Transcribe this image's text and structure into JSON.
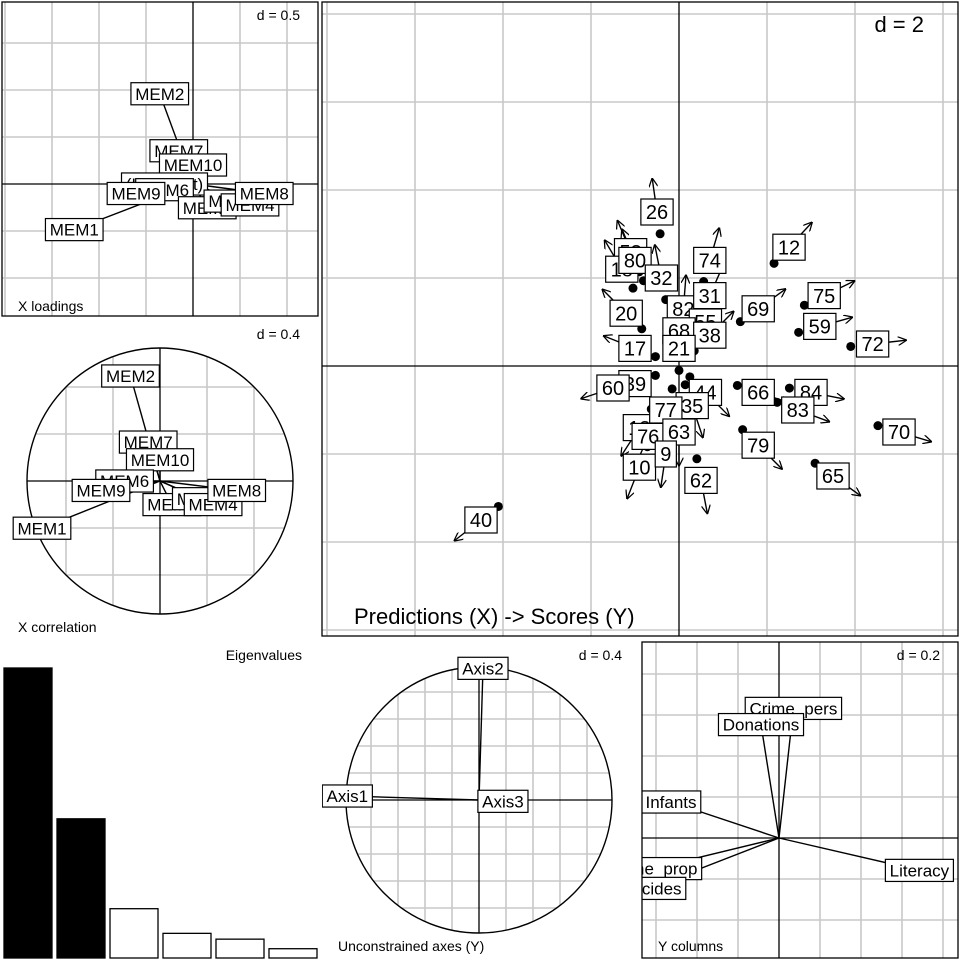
{
  "chart_data": [
    {
      "panel": "x-loadings",
      "type": "scatter",
      "caption": "X loadings",
      "scale_label": "d = 0.5",
      "labels": [
        {
          "text": "MEM2",
          "x": -0.35,
          "y": 0.95
        },
        {
          "text": "MEM7",
          "x": -0.15,
          "y": 0.35
        },
        {
          "text": "MEM10",
          "x": 0.0,
          "y": 0.2
        },
        {
          "text": "(Intercept)",
          "x": -0.3,
          "y": 0.0
        },
        {
          "text": "MEM6",
          "x": -0.3,
          "y": -0.06
        },
        {
          "text": "MEM9",
          "x": -0.6,
          "y": -0.1
        },
        {
          "text": "MEM3",
          "x": 0.15,
          "y": -0.25
        },
        {
          "text": "MEM5",
          "x": 0.42,
          "y": -0.18
        },
        {
          "text": "MEM4",
          "x": 0.6,
          "y": -0.22
        },
        {
          "text": "MEM8",
          "x": 0.75,
          "y": -0.1
        },
        {
          "text": "MEM1",
          "x": -1.25,
          "y": -0.48
        }
      ]
    },
    {
      "panel": "x-correlation",
      "type": "scatter",
      "caption": "X correlation",
      "scale_label": "d = 0.4",
      "labels": [
        {
          "text": "MEM2",
          "x": -0.25,
          "y": 0.89
        },
        {
          "text": "MEM7",
          "x": -0.1,
          "y": 0.33
        },
        {
          "text": "MEM10",
          "x": 0.0,
          "y": 0.18
        },
        {
          "text": "MEM6",
          "x": -0.3,
          "y": 0.0
        },
        {
          "text": "MEM9",
          "x": -0.5,
          "y": -0.08
        },
        {
          "text": "MEM3",
          "x": 0.1,
          "y": -0.2
        },
        {
          "text": "MEM5",
          "x": 0.35,
          "y": -0.15
        },
        {
          "text": "MEM4",
          "x": 0.45,
          "y": -0.2
        },
        {
          "text": "MEM8",
          "x": 0.65,
          "y": -0.08
        },
        {
          "text": "MEM1",
          "x": -1.0,
          "y": -0.4
        }
      ]
    },
    {
      "panel": "eigenvalues",
      "type": "bar",
      "title": "Eigenvalues",
      "values": [
        1.0,
        0.48,
        0.17,
        0.085,
        0.065,
        0.032
      ],
      "filled": [
        true,
        true,
        false,
        false,
        false,
        false
      ]
    },
    {
      "panel": "unconstrained-axes",
      "type": "scatter",
      "caption": "Unconstrained axes (Y)",
      "scale_label": "d = 0.4",
      "labels": [
        {
          "text": "Axis1",
          "x": -0.99,
          "y": 0.03
        },
        {
          "text": "Axis2",
          "x": 0.03,
          "y": 0.99
        },
        {
          "text": "Axis3",
          "x": 0.18,
          "y": -0.01
        }
      ]
    },
    {
      "panel": "predictions-scores",
      "type": "scatter",
      "title": "Predictions (X) -> Scores (Y)",
      "scale_label": "d = 2",
      "points": [
        {
          "id": "26",
          "x": -0.5,
          "y": 3.5
        },
        {
          "id": "53",
          "x": -1.1,
          "y": 2.6
        },
        {
          "id": "18",
          "x": -1.3,
          "y": 2.2
        },
        {
          "id": "80",
          "x": -1.0,
          "y": 2.4
        },
        {
          "id": "32",
          "x": -0.4,
          "y": 2.0
        },
        {
          "id": "74",
          "x": 0.7,
          "y": 2.4
        },
        {
          "id": "12",
          "x": 2.5,
          "y": 2.7
        },
        {
          "id": "75",
          "x": 3.3,
          "y": 1.6
        },
        {
          "id": "69",
          "x": 1.8,
          "y": 1.3
        },
        {
          "id": "20",
          "x": -1.2,
          "y": 1.2
        },
        {
          "id": "82",
          "x": 0.1,
          "y": 1.3
        },
        {
          "id": "31",
          "x": 0.7,
          "y": 1.6
        },
        {
          "id": "55",
          "x": 0.6,
          "y": 1.0
        },
        {
          "id": "68",
          "x": 0.0,
          "y": 0.8
        },
        {
          "id": "38",
          "x": 0.7,
          "y": 0.7
        },
        {
          "id": "17",
          "x": -1.0,
          "y": 0.4
        },
        {
          "id": "21",
          "x": 0.0,
          "y": 0.4
        },
        {
          "id": "59",
          "x": 3.2,
          "y": 0.9
        },
        {
          "id": "72",
          "x": 4.4,
          "y": 0.5
        },
        {
          "id": "39",
          "x": -1.0,
          "y": -0.4
        },
        {
          "id": "44",
          "x": 0.6,
          "y": -0.6
        },
        {
          "id": "60",
          "x": -1.5,
          "y": -0.5
        },
        {
          "id": "35",
          "x": 0.3,
          "y": -0.9
        },
        {
          "id": "84",
          "x": 3.0,
          "y": -0.6
        },
        {
          "id": "66",
          "x": 1.8,
          "y": -0.6
        },
        {
          "id": "83",
          "x": 2.7,
          "y": -1.0
        },
        {
          "id": "70",
          "x": 5.0,
          "y": -1.5
        },
        {
          "id": "13",
          "x": -0.9,
          "y": -1.4
        },
        {
          "id": "76",
          "x": -0.7,
          "y": -1.6
        },
        {
          "id": "77",
          "x": -0.3,
          "y": -1.0
        },
        {
          "id": "63",
          "x": 0.0,
          "y": -1.5
        },
        {
          "id": "65",
          "x": 3.5,
          "y": -2.5
        },
        {
          "id": "79",
          "x": 1.8,
          "y": -1.8
        },
        {
          "id": "40",
          "x": -4.5,
          "y": -3.5
        },
        {
          "id": "10",
          "x": -0.9,
          "y": -2.3
        },
        {
          "id": "9",
          "x": -0.3,
          "y": -2.0
        },
        {
          "id": "62",
          "x": 0.5,
          "y": -2.6
        }
      ]
    },
    {
      "panel": "y-columns",
      "type": "scatter",
      "caption": "Y columns",
      "scale_label": "d = 0.2",
      "labels": [
        {
          "text": "Crime_pers",
          "x": 0.08,
          "y": 0.72
        },
        {
          "text": "Donations",
          "x": -0.1,
          "y": 0.63
        },
        {
          "text": "Infants",
          "x": -0.6,
          "y": 0.2
        },
        {
          "text": "Crime_prop",
          "x": -0.7,
          "y": -0.17
        },
        {
          "text": "Suicides",
          "x": -0.72,
          "y": -0.28
        },
        {
          "text": "Literacy",
          "x": 0.78,
          "y": -0.18
        }
      ]
    }
  ]
}
